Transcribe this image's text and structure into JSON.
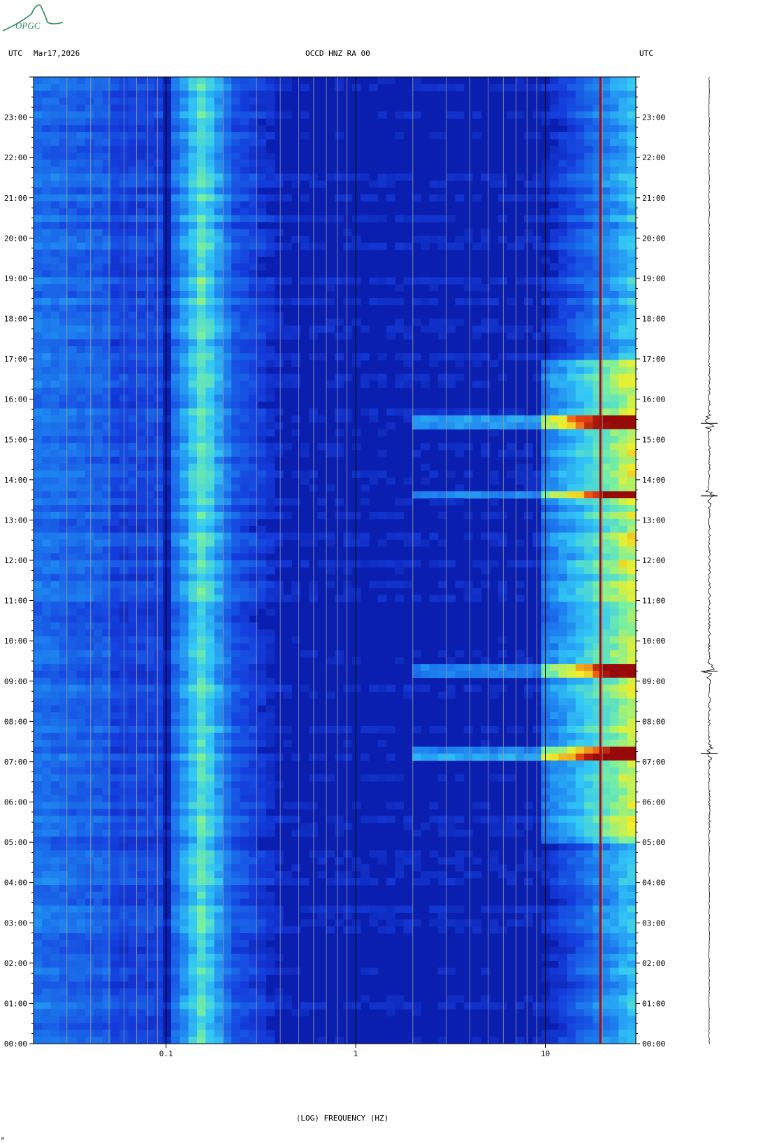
{
  "header": {
    "left_tz": "UTC",
    "date": "Mar17,2026",
    "station": "OCCD HNZ RA 00",
    "right_tz": "UTC"
  },
  "logo": {
    "text": "OPGC",
    "color": "#2e8b57"
  },
  "colors": {
    "background_blue": "#0a1fb0",
    "low_freq_blue": "#1a4ee6",
    "microseism_cyan": "#3cc8f0",
    "hot_red": "#a01010",
    "grid_line": "#9a9a9a"
  },
  "footer_mark": "M",
  "chart_data": {
    "type": "heatmap",
    "title": "OCCD HNZ RA 00",
    "xlabel": "(LOG) FREQUENCY (HZ)",
    "ylabel": "",
    "x_scale": "log",
    "xlim": [
      0.02,
      30
    ],
    "ylim_hours": [
      0,
      24
    ],
    "x_ticks": [
      {
        "value": 0.1,
        "label": "0.1"
      },
      {
        "value": 1,
        "label": "1"
      },
      {
        "value": 10,
        "label": "10"
      }
    ],
    "y_ticks": [
      "00:00",
      "01:00",
      "02:00",
      "03:00",
      "04:00",
      "05:00",
      "06:00",
      "07:00",
      "08:00",
      "09:00",
      "10:00",
      "11:00",
      "12:00",
      "13:00",
      "14:00",
      "15:00",
      "16:00",
      "17:00",
      "18:00",
      "19:00",
      "20:00",
      "21:00",
      "22:00",
      "23:00"
    ],
    "grid_frequencies": [
      0.03,
      0.04,
      0.05,
      0.06,
      0.07,
      0.08,
      0.09,
      0.1,
      0.2,
      0.3,
      0.4,
      0.5,
      0.6,
      0.7,
      0.8,
      0.9,
      1,
      2,
      3,
      4,
      5,
      6,
      7,
      8,
      9,
      10,
      20
    ],
    "features": [
      {
        "name": "low-frequency band",
        "f_range": [
          0.02,
          0.05
        ],
        "level": 0.35
      },
      {
        "name": "microseism peak",
        "f_range": [
          0.12,
          0.2
        ],
        "level": 0.65
      },
      {
        "name": "constant spectral line",
        "frequency_hz": 19.5,
        "level": 1.0
      },
      {
        "name": "high-frequency cultural noise",
        "f_range": [
          10,
          30
        ],
        "active_hours": [
          5,
          17
        ],
        "level": 0.8
      }
    ],
    "events_hours": [
      7.2,
      9.25,
      13.6,
      15.4
    ]
  }
}
